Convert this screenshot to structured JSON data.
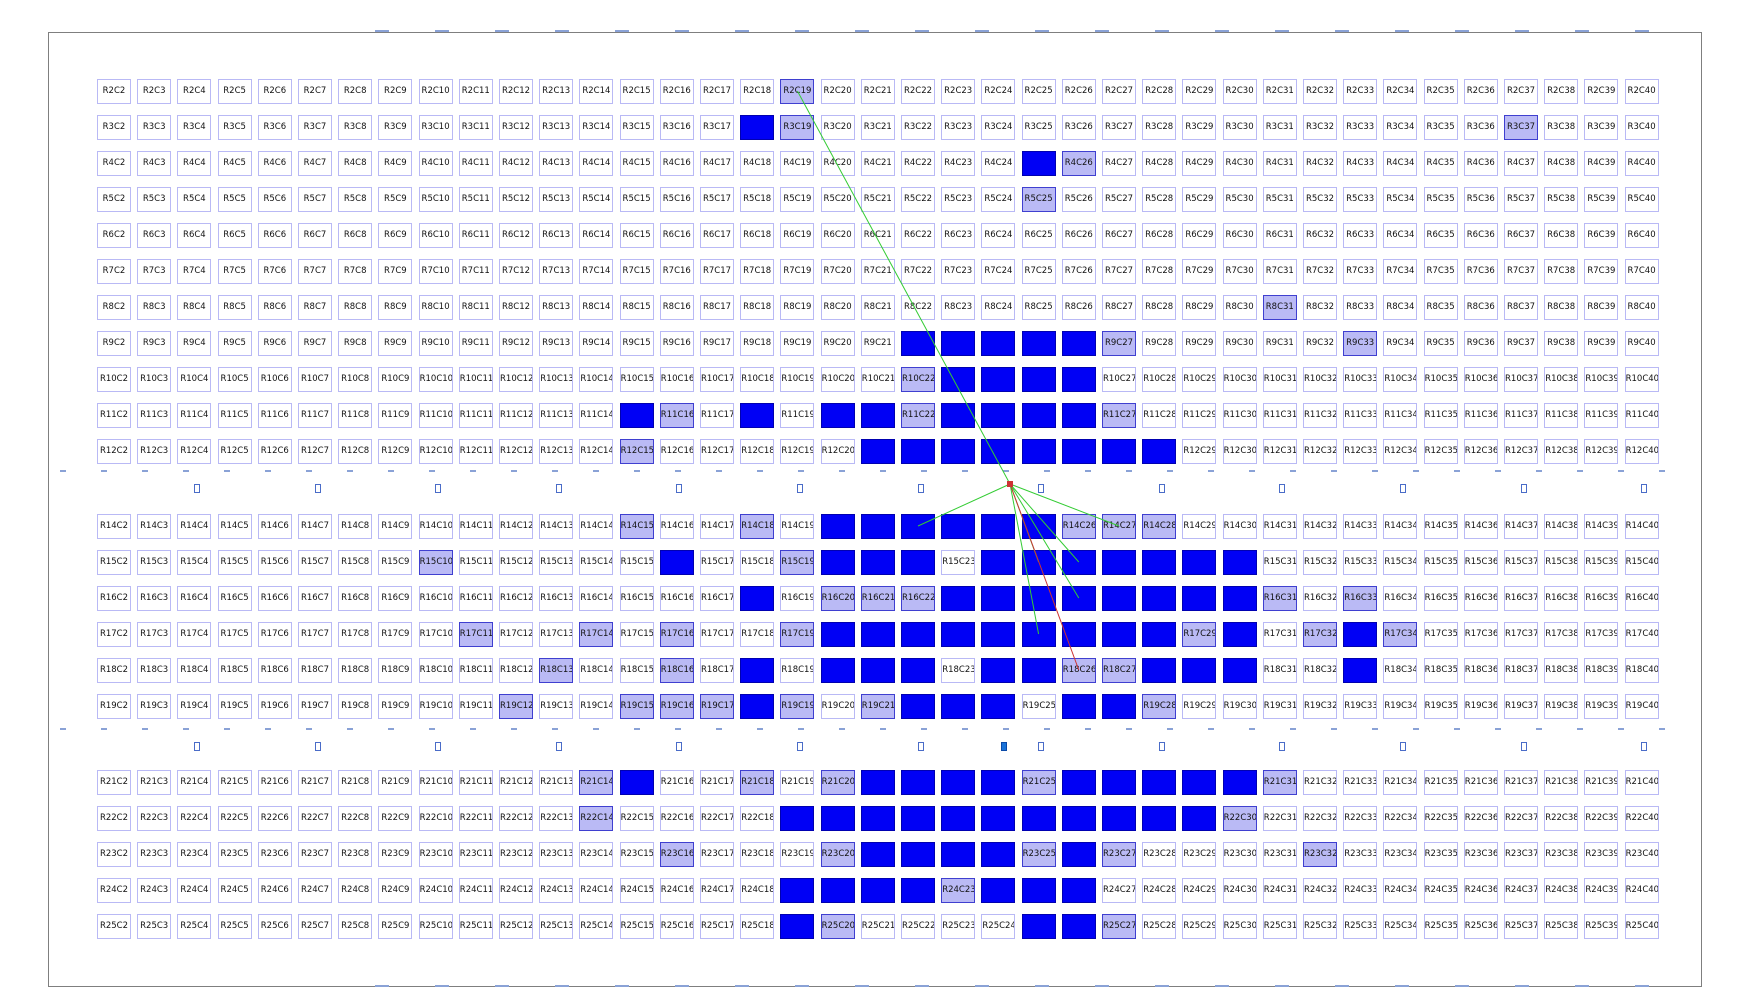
{
  "view": {
    "first_col": 2,
    "last_col": 40,
    "row_bands": [
      {
        "name": "band-top",
        "rows": [
          2,
          3,
          4,
          5,
          6,
          7,
          8,
          9,
          10,
          11,
          12
        ]
      },
      {
        "name": "band-middle",
        "rows": [
          14,
          15,
          16,
          17,
          18,
          19
        ]
      },
      {
        "name": "band-bottom",
        "rows": [
          21,
          22,
          23,
          24,
          25
        ]
      }
    ],
    "tile_label_pattern": "R{r}C{c}"
  },
  "colors": {
    "tile_border": "#b9b9f5",
    "light_used": "#babaf5",
    "heavy_used": "#0000f5",
    "net_primary": "#33cc33",
    "net_secondary": "#cc3333",
    "io_marker": "#1a73d8",
    "frame": "#7f7f7f"
  },
  "utilization": {
    "light": [
      "2-19",
      "3-19",
      "3-37",
      "4-26",
      "5-25",
      "8-31",
      "9-27",
      "9-33",
      "10-22",
      "11-16",
      "11-22",
      "11-27",
      "12-15",
      "14-15",
      "14-18",
      "14-26",
      "14-27",
      "14-28",
      "15-10",
      "15-19",
      "16-20",
      "16-21",
      "16-22",
      "16-31",
      "16-33",
      "17-11",
      "17-14",
      "17-16",
      "17-19",
      "17-29",
      "17-32",
      "17-34",
      "18-13",
      "18-16",
      "18-26",
      "18-27",
      "19-12",
      "19-15",
      "19-16",
      "19-17",
      "19-19",
      "19-21",
      "19-28",
      "21-14",
      "21-18",
      "21-20",
      "21-25",
      "21-31",
      "22-14",
      "22-30",
      "23-16",
      "23-20",
      "23-25",
      "23-27",
      "23-32",
      "24-23",
      "25-20",
      "25-27"
    ],
    "heavy": [
      "3-18",
      "4-25",
      "9-22",
      "9-23",
      "9-24",
      "9-25",
      "9-26",
      "10-23",
      "10-24",
      "10-25",
      "10-26",
      "11-15",
      "11-18",
      "11-20",
      "11-21",
      "11-23",
      "11-24",
      "11-25",
      "11-26",
      "12-21",
      "12-22",
      "12-23",
      "12-24",
      "12-25",
      "12-26",
      "12-27",
      "12-28",
      "14-20",
      "14-21",
      "14-22",
      "14-23",
      "14-24",
      "14-25",
      "15-16",
      "15-20",
      "15-21",
      "15-22",
      "15-24",
      "15-25",
      "15-26",
      "15-27",
      "15-28",
      "15-29",
      "15-30",
      "16-18",
      "16-23",
      "16-24",
      "16-25",
      "16-26",
      "16-27",
      "16-28",
      "16-29",
      "16-30",
      "17-20",
      "17-21",
      "17-22",
      "17-23",
      "17-24",
      "17-25",
      "17-26",
      "17-27",
      "17-28",
      "17-30",
      "17-33",
      "18-18",
      "18-20",
      "18-21",
      "18-22",
      "18-24",
      "18-25",
      "18-28",
      "18-29",
      "18-30",
      "18-33",
      "19-18",
      "19-22",
      "19-23",
      "19-24",
      "19-26",
      "19-27",
      "21-15",
      "21-21",
      "21-22",
      "21-23",
      "21-24",
      "21-26",
      "21-27",
      "21-28",
      "21-29",
      "21-30",
      "22-19",
      "22-20",
      "22-21",
      "22-22",
      "22-23",
      "22-24",
      "22-25",
      "22-26",
      "22-27",
      "22-28",
      "22-29",
      "23-21",
      "23-22",
      "23-23",
      "23-24",
      "23-26",
      "24-19",
      "24-20",
      "24-21",
      "24-22",
      "24-24",
      "24-25",
      "24-26",
      "25-19",
      "25-25",
      "25-26"
    ]
  },
  "nets": [
    {
      "name": "net-primary",
      "color": "#33cc33",
      "source": "io-top-middle",
      "targets": [
        "2-19",
        "14-22",
        "14-27",
        "15-25",
        "15-26",
        "16-26",
        "17-25"
      ]
    },
    {
      "name": "net-secondary",
      "color": "#cc3333",
      "source": "io-top-middle",
      "targets": [
        "18-26"
      ]
    }
  ]
}
